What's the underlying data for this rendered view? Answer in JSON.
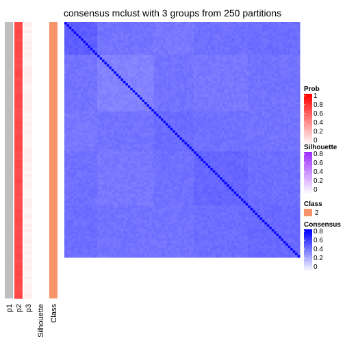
{
  "chart_data": {
    "type": "heatmap",
    "title": "consensus mclust with 3 groups from 250 partitions",
    "n_samples": 100,
    "annotation_columns": [
      {
        "name": "p1",
        "value": 0,
        "color": "#BEBEBE"
      },
      {
        "name": "p2",
        "value": 1,
        "color": "#F8734A"
      },
      {
        "name": "p3",
        "value": 0.03,
        "color": "#FEF0EB"
      },
      {
        "name": "Silhouette",
        "value": 0,
        "color": "#FFFFFF"
      },
      {
        "name": "Class",
        "value": 2,
        "color": "#F8946A"
      }
    ],
    "consensus": {
      "diagonal": 1,
      "off_diagonal_range": [
        0.45,
        0.65
      ],
      "high_color": "#0000FF",
      "low_color": "#FFFFFF"
    },
    "legends": [
      {
        "title": "Prob",
        "ticks": [
          "1",
          "0.8",
          "0.6",
          "0.4",
          "0.2",
          "0"
        ],
        "colors": [
          "#FF0000",
          "#FFFFFF"
        ]
      },
      {
        "title": "Silhouette",
        "ticks": [
          "0.8",
          "0.6",
          "0.4",
          "0.2",
          "0"
        ],
        "colors": [
          "#9E2FFF",
          "#FFFFFF"
        ]
      },
      {
        "title": "Class",
        "entries": [
          {
            "label": "2",
            "color": "#F8946A"
          }
        ]
      },
      {
        "title": "Consensus",
        "ticks": [
          "0.8",
          "0.6",
          "0.4",
          "0.2",
          "0"
        ],
        "colors": [
          "#0000FF",
          "#FFFFFF"
        ]
      }
    ]
  }
}
